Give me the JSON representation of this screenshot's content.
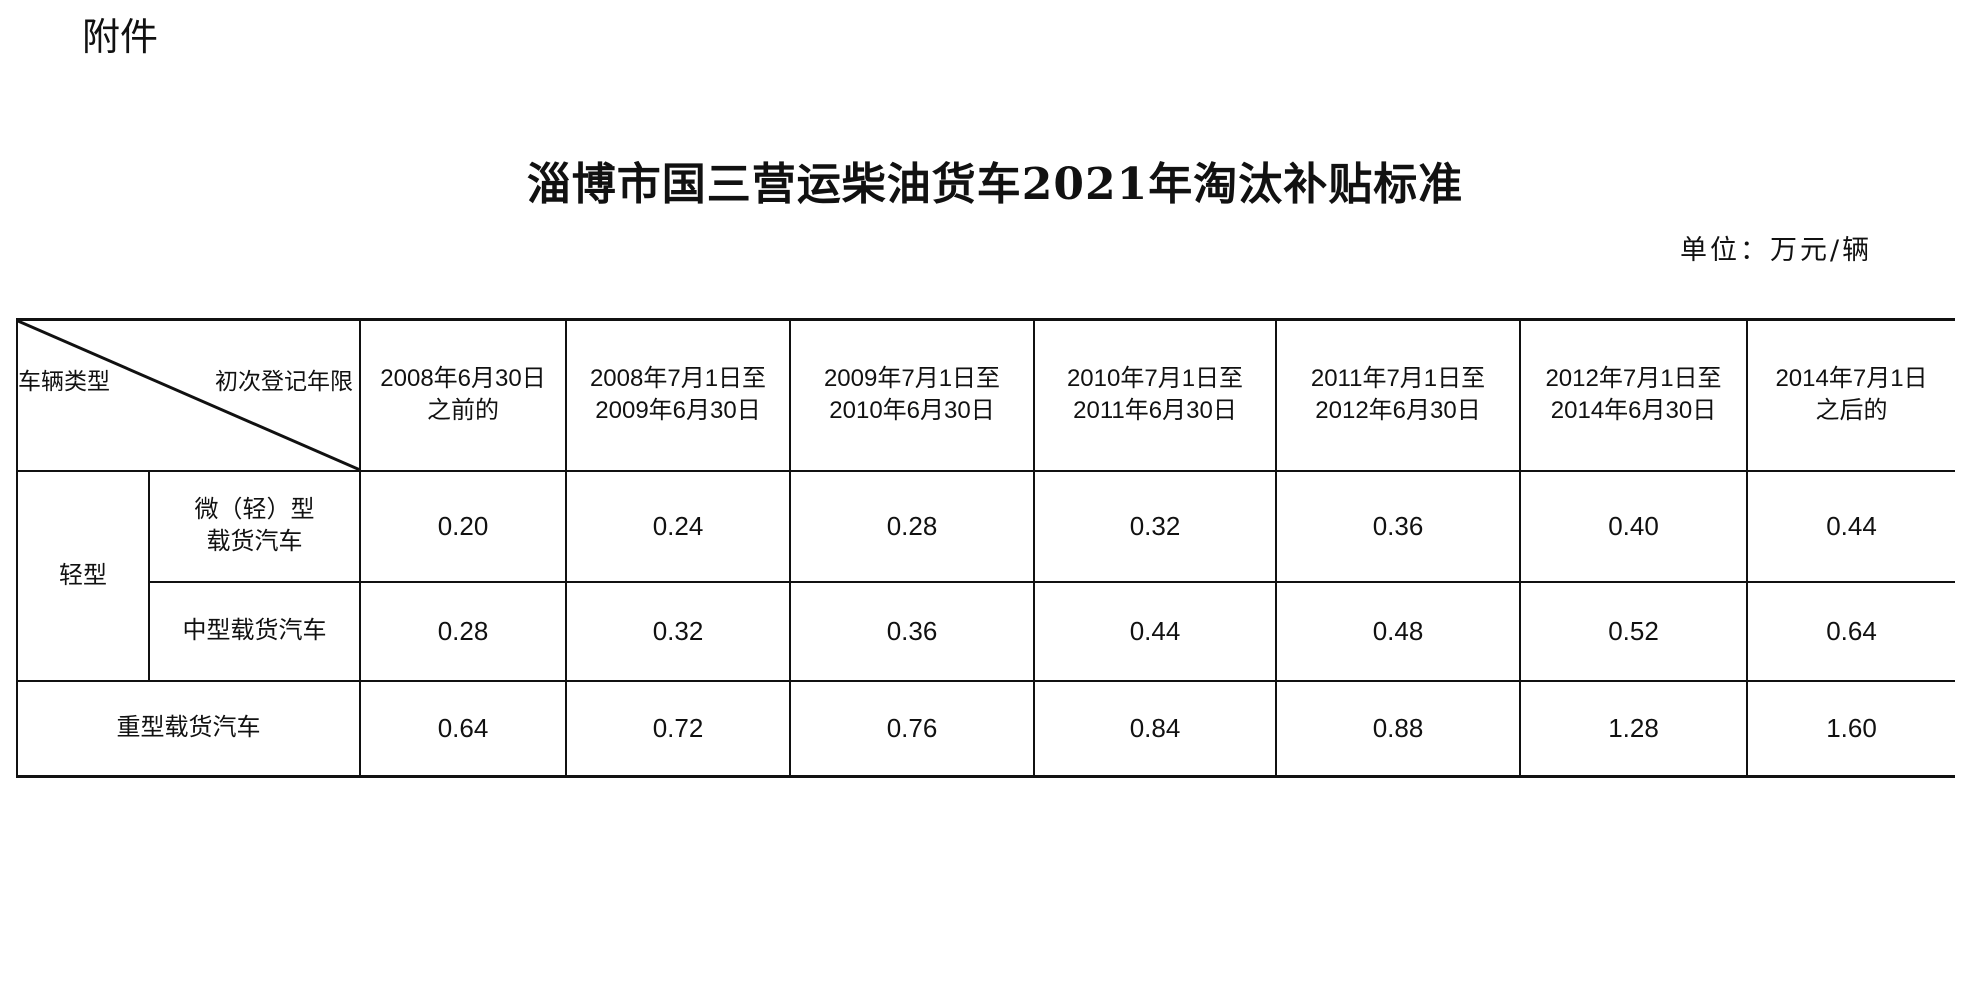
{
  "attachment_label": "附件",
  "title": "淄博市国三营运柴油货车2021年淘汰补贴标准",
  "unit": "单位：万元/辆",
  "table": {
    "corner_row_label": "车辆类型",
    "corner_col_label": "初次登记年限",
    "columns": [
      [
        "2008年6月30日",
        "之前的"
      ],
      [
        "2008年7月1日至",
        "2009年6月30日"
      ],
      [
        "2009年7月1日至",
        "2010年6月30日"
      ],
      [
        "2010年7月1日至",
        "2011年6月30日"
      ],
      [
        "2011年7月1日至",
        "2012年6月30日"
      ],
      [
        "2012年7月1日至",
        "2014年6月30日"
      ],
      [
        "2014年7月1日",
        "之后的"
      ]
    ],
    "group_light": "轻型",
    "rows": [
      {
        "label": [
          "微（轻）型",
          "载货汽车"
        ],
        "values": [
          "0.20",
          "0.24",
          "0.28",
          "0.32",
          "0.36",
          "0.40",
          "0.44"
        ]
      },
      {
        "label": [
          "中型载货汽车"
        ],
        "values": [
          "0.28",
          "0.32",
          "0.36",
          "0.44",
          "0.48",
          "0.52",
          "0.64"
        ]
      },
      {
        "label": [
          "重型载货汽车"
        ],
        "values": [
          "0.64",
          "0.72",
          "0.76",
          "0.84",
          "0.88",
          "1.28",
          "1.60"
        ]
      }
    ]
  }
}
